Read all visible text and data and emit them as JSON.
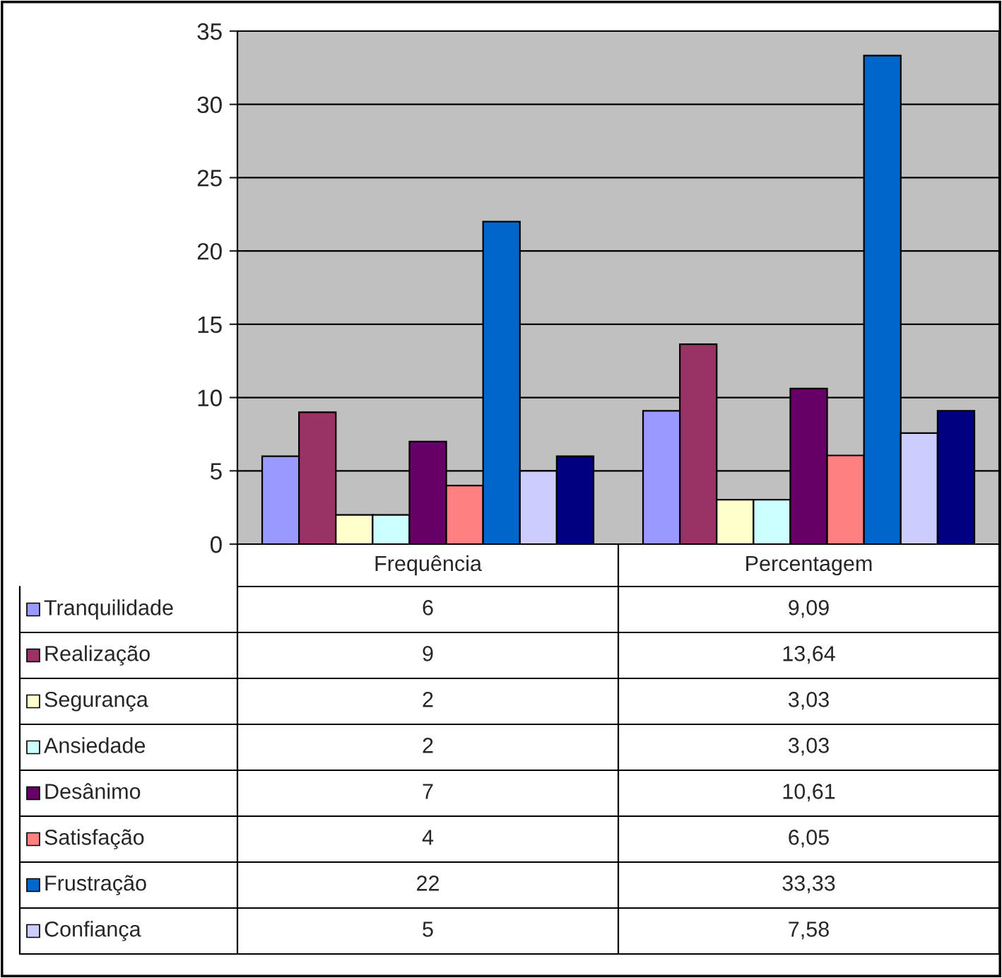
{
  "chart_data": {
    "type": "bar",
    "categories": [
      "Frequência",
      "Percentagem"
    ],
    "series": [
      {
        "name": "Tranquilidade",
        "color": "#9999ff",
        "values": [
          6,
          9.09
        ],
        "value_labels": [
          "6",
          "9,09"
        ]
      },
      {
        "name": "Realização",
        "color": "#993366",
        "values": [
          9,
          13.64
        ],
        "value_labels": [
          "9",
          "13,64"
        ]
      },
      {
        "name": "Segurança",
        "color": "#ffffcc",
        "values": [
          2,
          3.03
        ],
        "value_labels": [
          "2",
          "3,03"
        ]
      },
      {
        "name": "Ansiedade",
        "color": "#ccffff",
        "values": [
          2,
          3.03
        ],
        "value_labels": [
          "2",
          "3,03"
        ]
      },
      {
        "name": "Desânimo",
        "color": "#660066",
        "values": [
          7,
          10.61
        ],
        "value_labels": [
          "7",
          "10,61"
        ]
      },
      {
        "name": "Satisfação",
        "color": "#ff8080",
        "values": [
          4,
          6.05
        ],
        "value_labels": [
          "4",
          "6,05"
        ]
      },
      {
        "name": "Frustração",
        "color": "#0066cc",
        "values": [
          22,
          33.33
        ],
        "value_labels": [
          "22",
          "33,33"
        ]
      },
      {
        "name": "Confiança",
        "color": "#ccccff",
        "values": [
          5,
          7.58
        ],
        "value_labels": [
          "5",
          "7,58"
        ]
      },
      {
        "color": "#000080",
        "values": [
          6,
          9.1
        ]
      }
    ],
    "ylim": [
      0,
      35
    ],
    "yticks": [
      0,
      5,
      10,
      15,
      20,
      25,
      30,
      35
    ],
    "grid": "y",
    "legend": "bottom"
  }
}
